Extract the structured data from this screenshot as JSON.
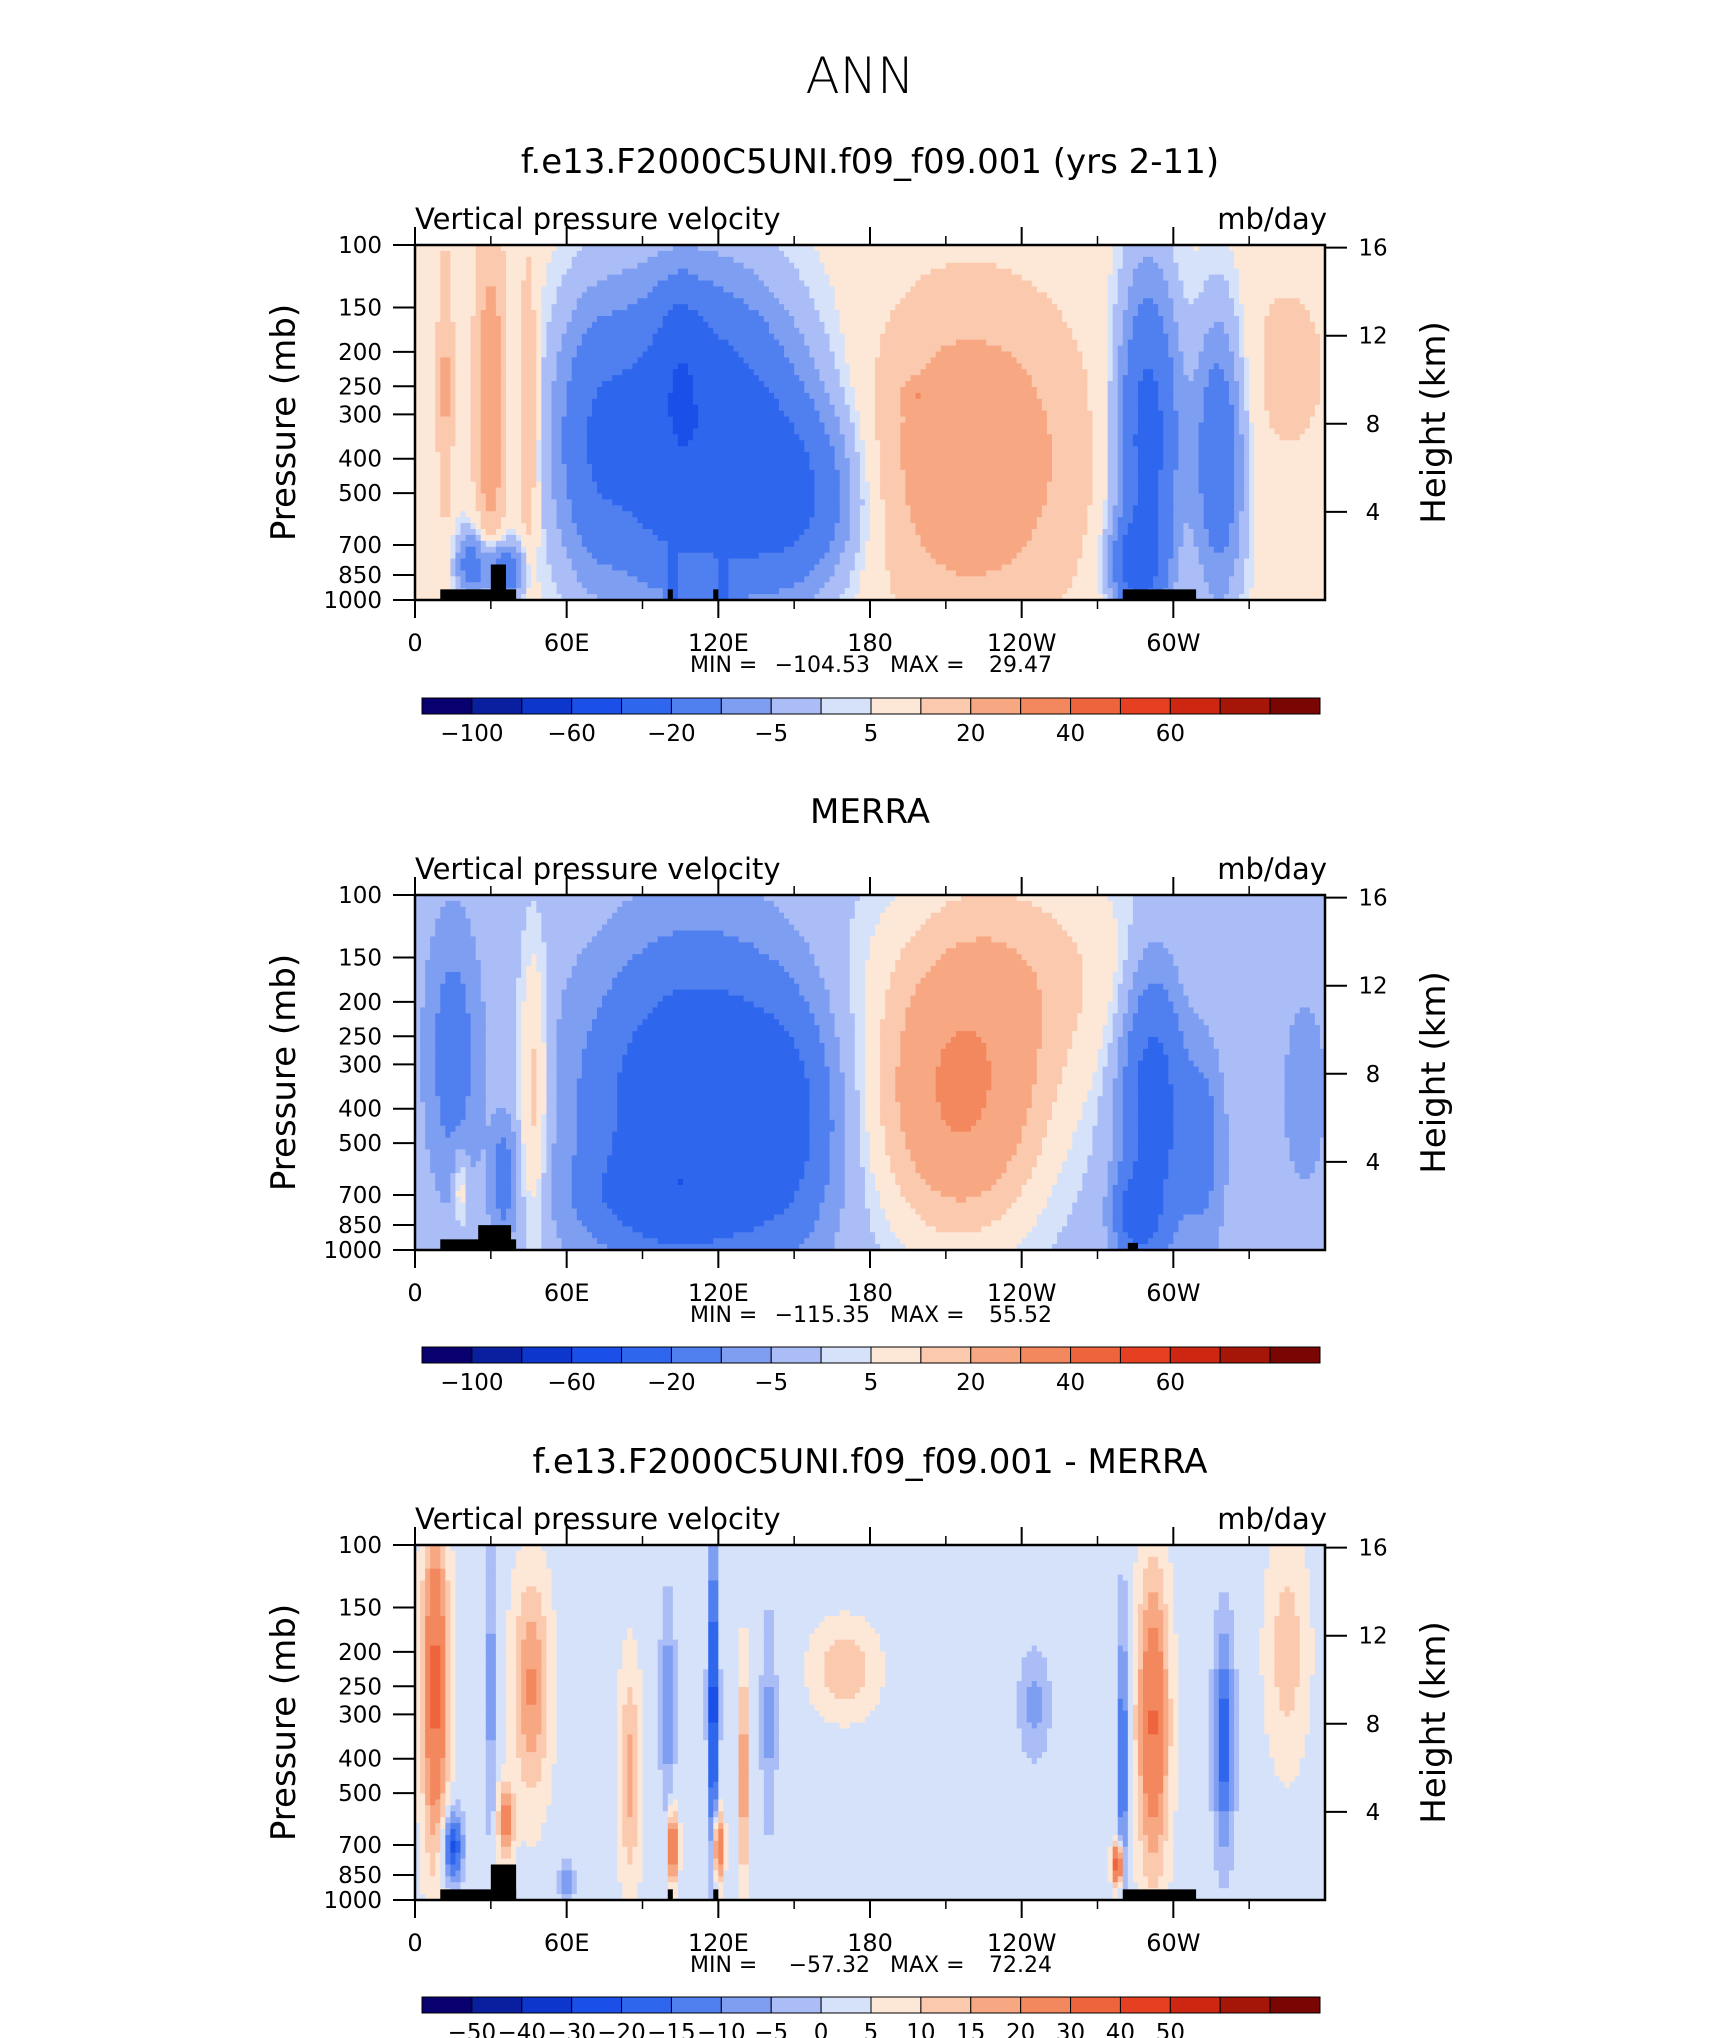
{
  "page": {
    "title": "ANN"
  },
  "chart_data": [
    {
      "type": "heatmap",
      "title": "f.e13.F2000C5UNI.f09_f09.001 (yrs 2-11)",
      "left_string": "Vertical pressure velocity",
      "right_string": "mb/day",
      "ylabel": "Pressure (mb)",
      "ylabel_right": "Height (km)",
      "x_ticks": [
        "0",
        "60E",
        "120E",
        "180",
        "120W",
        "60W"
      ],
      "x_tick_values": [
        0,
        60,
        120,
        180,
        240,
        300
      ],
      "xlim": [
        0,
        360
      ],
      "y_ticks": [
        100,
        150,
        200,
        250,
        300,
        400,
        500,
        700,
        850,
        1000
      ],
      "ylim": [
        1000,
        100
      ],
      "y_scale": "log",
      "height_ticks": [
        4,
        8,
        12,
        16
      ],
      "stats": {
        "min_label": "MIN =",
        "min": "−104.53",
        "max_label": "MAX =",
        "max": "29.47"
      },
      "colorbar": {
        "levels": [
          -120,
          -100,
          -80,
          -60,
          -40,
          -20,
          -10,
          -5,
          -1,
          1,
          5,
          10,
          20,
          30,
          40,
          50,
          60,
          70
        ],
        "labels": [
          "−100",
          "−60",
          "−20",
          "−5",
          "5",
          "20",
          "40",
          "60"
        ],
        "colors": [
          "#08006e",
          "#0a1fa0",
          "#0d36cc",
          "#1a4fe8",
          "#2f66ee",
          "#507ff0",
          "#7e9ef2",
          "#abbdf6",
          "#d5e2fa",
          "#fde8d8",
          "#fbc9ad",
          "#f7a883",
          "#f3875d",
          "#ee643c",
          "#e64022",
          "#cd2712",
          "#a51508",
          "#7a0603"
        ]
      },
      "field": "ann_model",
      "levels": [
        -120,
        -100,
        -80,
        -60,
        -40,
        -20,
        -10,
        -5,
        -1,
        1,
        5,
        10,
        20,
        30,
        40,
        50,
        60,
        70
      ]
    },
    {
      "type": "heatmap",
      "title": "MERRA",
      "left_string": "Vertical pressure velocity",
      "right_string": "mb/day",
      "ylabel": "Pressure (mb)",
      "ylabel_right": "Height (km)",
      "x_ticks": [
        "0",
        "60E",
        "120E",
        "180",
        "120W",
        "60W"
      ],
      "x_tick_values": [
        0,
        60,
        120,
        180,
        240,
        300
      ],
      "xlim": [
        0,
        360
      ],
      "y_ticks": [
        100,
        150,
        200,
        250,
        300,
        400,
        500,
        700,
        850,
        1000
      ],
      "ylim": [
        1000,
        100
      ],
      "y_scale": "log",
      "height_ticks": [
        4,
        8,
        12,
        16
      ],
      "stats": {
        "min_label": "MIN =",
        "min": "−115.35",
        "max_label": "MAX =",
        "max": "55.52"
      },
      "colorbar": {
        "levels": [
          -120,
          -100,
          -80,
          -60,
          -40,
          -20,
          -10,
          -5,
          -1,
          1,
          5,
          10,
          20,
          30,
          40,
          50,
          60,
          70
        ],
        "labels": [
          "−100",
          "−60",
          "−20",
          "−5",
          "5",
          "20",
          "40",
          "60"
        ],
        "colors": [
          "#08006e",
          "#0a1fa0",
          "#0d36cc",
          "#1a4fe8",
          "#2f66ee",
          "#507ff0",
          "#7e9ef2",
          "#abbdf6",
          "#d5e2fa",
          "#fde8d8",
          "#fbc9ad",
          "#f7a883",
          "#f3875d",
          "#ee643c",
          "#e64022",
          "#cd2712",
          "#a51508",
          "#7a0603"
        ]
      },
      "field": "ann_obs",
      "levels": [
        -120,
        -100,
        -80,
        -60,
        -40,
        -20,
        -10,
        -5,
        -1,
        1,
        5,
        10,
        20,
        30,
        40,
        50,
        60,
        70
      ]
    },
    {
      "type": "heatmap",
      "title": "f.e13.F2000C5UNI.f09_f09.001 - MERRA",
      "left_string": "Vertical pressure velocity",
      "right_string": "mb/day",
      "ylabel": "Pressure (mb)",
      "ylabel_right": "Height (km)",
      "x_ticks": [
        "0",
        "60E",
        "120E",
        "180",
        "120W",
        "60W"
      ],
      "x_tick_values": [
        0,
        60,
        120,
        180,
        240,
        300
      ],
      "xlim": [
        0,
        360
      ],
      "y_ticks": [
        100,
        150,
        200,
        250,
        300,
        400,
        500,
        700,
        850,
        1000
      ],
      "ylim": [
        1000,
        100
      ],
      "y_scale": "log",
      "height_ticks": [
        4,
        8,
        12,
        16
      ],
      "stats": {
        "min_label": "MIN =",
        "min": "−57.32",
        "max_label": "MAX =",
        "max": "72.24"
      },
      "colorbar": {
        "levels": [
          -60,
          -50,
          -40,
          -30,
          -20,
          -15,
          -10,
          -5,
          0,
          5,
          10,
          15,
          20,
          30,
          40,
          50,
          60
        ],
        "labels": [
          "−50",
          "−40",
          "−30",
          "−20",
          "−15",
          "−10",
          "−5",
          "0",
          "5",
          "10",
          "15",
          "20",
          "30",
          "40",
          "50"
        ],
        "colors": [
          "#08006e",
          "#0a1fa0",
          "#0d36cc",
          "#1a4fe8",
          "#2f66ee",
          "#507ff0",
          "#7e9ef2",
          "#abbdf6",
          "#d5e2fa",
          "#fde8d8",
          "#fbc9ad",
          "#f7a883",
          "#f3875d",
          "#ee643c",
          "#e64022",
          "#cd2712",
          "#a51508",
          "#7a0603"
        ]
      },
      "field": "ann_diff",
      "levels": [
        -60,
        -50,
        -40,
        -30,
        -20,
        -15,
        -10,
        -5,
        0,
        5,
        10,
        15,
        20,
        30,
        40,
        50,
        60
      ]
    }
  ]
}
